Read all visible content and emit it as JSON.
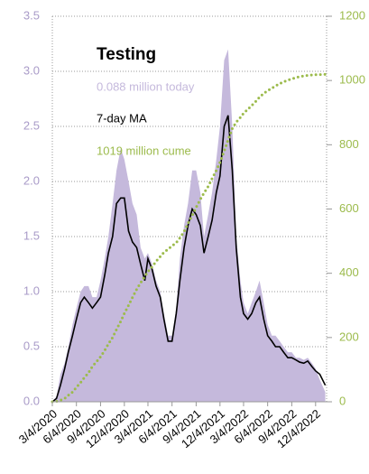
{
  "chart_data": {
    "type": "area",
    "annotations": [
      {
        "text": "Testing",
        "color": "#000000"
      },
      {
        "text": "0.088 million today",
        "color": "#c5b9dc"
      },
      {
        "text": "7-day MA",
        "color": "#000000"
      },
      {
        "text": "1019 million cume",
        "color": "#9cbb4c"
      }
    ],
    "x": [
      "3/4/2020",
      "3/20/2020",
      "4/4/2020",
      "4/20/2020",
      "5/4/2020",
      "5/20/2020",
      "6/4/2020",
      "6/20/2020",
      "7/4/2020",
      "7/20/2020",
      "8/4/2020",
      "8/20/2020",
      "9/4/2020",
      "9/20/2020",
      "10/4/2020",
      "10/20/2020",
      "11/4/2020",
      "11/20/2020",
      "12/4/2020",
      "12/20/2020",
      "1/4/2021",
      "1/20/2021",
      "2/4/2021",
      "2/20/2021",
      "3/4/2021",
      "3/20/2021",
      "4/4/2021",
      "4/20/2021",
      "5/4/2021",
      "5/20/2021",
      "6/4/2021",
      "6/20/2021",
      "7/4/2021",
      "7/20/2021",
      "8/4/2021",
      "8/20/2021",
      "9/4/2021",
      "9/20/2021",
      "10/4/2021",
      "10/20/2021",
      "11/4/2021",
      "11/20/2021",
      "12/4/2021",
      "12/20/2021",
      "1/4/2022",
      "1/20/2022",
      "2/4/2022",
      "2/20/2022",
      "3/4/2022",
      "3/20/2022",
      "4/4/2022",
      "4/20/2022",
      "5/4/2022",
      "5/20/2022",
      "6/4/2022",
      "6/20/2022",
      "7/4/2022",
      "7/20/2022",
      "8/4/2022",
      "8/20/2022",
      "9/4/2022",
      "9/20/2022",
      "10/4/2022",
      "10/20/2022",
      "11/4/2022",
      "11/20/2022",
      "12/4/2022",
      "12/20/2022",
      "1/10/2023"
    ],
    "series": [
      {
        "color": "#c5b9dc",
        "values": [
          0,
          0.05,
          0.25,
          0.35,
          0.5,
          0.7,
          0.85,
          1.0,
          1.05,
          1.05,
          0.95,
          0.95,
          1.1,
          1.3,
          1.5,
          1.8,
          2.1,
          2.3,
          2.2,
          2.0,
          1.8,
          1.7,
          1.4,
          1.3,
          1.35,
          1.25,
          1.1,
          1.0,
          0.8,
          0.6,
          0.6,
          0.85,
          1.3,
          1.6,
          1.8,
          2.1,
          2.1,
          1.9,
          1.5,
          1.7,
          1.9,
          2.2,
          2.5,
          3.1,
          3.2,
          2.5,
          1.5,
          1.1,
          0.9,
          0.8,
          0.9,
          1.0,
          1.1,
          0.9,
          0.7,
          0.6,
          0.6,
          0.55,
          0.5,
          0.45,
          0.45,
          0.4,
          0.4,
          0.38,
          0.4,
          0.35,
          0.3,
          0.2,
          0.088
        ]
      },
      {
        "color": "#000000",
        "values": [
          0,
          0.03,
          0.15,
          0.3,
          0.45,
          0.6,
          0.75,
          0.9,
          0.95,
          0.9,
          0.85,
          0.9,
          0.95,
          1.15,
          1.35,
          1.5,
          1.8,
          1.85,
          1.85,
          1.55,
          1.45,
          1.4,
          1.25,
          1.1,
          1.3,
          1.2,
          1.05,
          0.95,
          0.75,
          0.55,
          0.55,
          0.8,
          1.1,
          1.4,
          1.6,
          1.75,
          1.7,
          1.6,
          1.35,
          1.5,
          1.65,
          1.9,
          2.05,
          2.5,
          2.6,
          2.1,
          1.4,
          0.95,
          0.8,
          0.75,
          0.8,
          0.9,
          0.95,
          0.75,
          0.6,
          0.55,
          0.5,
          0.5,
          0.45,
          0.4,
          0.4,
          0.38,
          0.36,
          0.35,
          0.37,
          0.32,
          0.28,
          0.25,
          0.15
        ]
      },
      {
        "color": "#9cbb4c",
        "axis": "y2",
        "values": [
          0,
          1,
          5,
          10,
          20,
          30,
          45,
          60,
          75,
          90,
          110,
          125,
          140,
          160,
          180,
          200,
          225,
          250,
          275,
          300,
          325,
          350,
          370,
          390,
          405,
          420,
          437,
          452,
          465,
          475,
          485,
          495,
          510,
          530,
          555,
          580,
          605,
          630,
          650,
          670,
          695,
          720,
          745,
          780,
          815,
          850,
          870,
          885,
          898,
          910,
          922,
          935,
          948,
          960,
          968,
          976,
          983,
          990,
          996,
          1001,
          1005,
          1009,
          1012,
          1014,
          1016,
          1017,
          1018,
          1018.5,
          1019
        ]
      }
    ],
    "xlim": [
      "3/4/2020",
      "1/15/2023"
    ],
    "xticks": [
      "3/4/2020",
      "6/4/2020",
      "9/4/2020",
      "12/4/2020",
      "3/4/2021",
      "6/4/2021",
      "9/4/2021",
      "12/4/2021",
      "3/4/2022",
      "6/4/2022",
      "9/4/2022",
      "12/4/2022"
    ],
    "ylim": [
      0,
      3.5
    ],
    "yticks": [
      {
        "value": 0,
        "label": "0.0"
      },
      {
        "value": 0.5,
        "label": "0.5"
      },
      {
        "value": 1,
        "label": "1.0"
      },
      {
        "value": 1.5,
        "label": "1.5"
      },
      {
        "value": 2,
        "label": "2.0"
      },
      {
        "value": 2.5,
        "label": "2.5"
      },
      {
        "value": 3,
        "label": "3.0"
      },
      {
        "value": 3.5,
        "label": "3.5"
      }
    ],
    "y2lim": [
      0,
      1200
    ],
    "y2ticks": [
      0,
      200,
      400,
      600,
      800,
      1000,
      1200
    ],
    "grid": true,
    "ytick_color": "#a99bc8",
    "y2tick_color": "#9cbb4c"
  }
}
